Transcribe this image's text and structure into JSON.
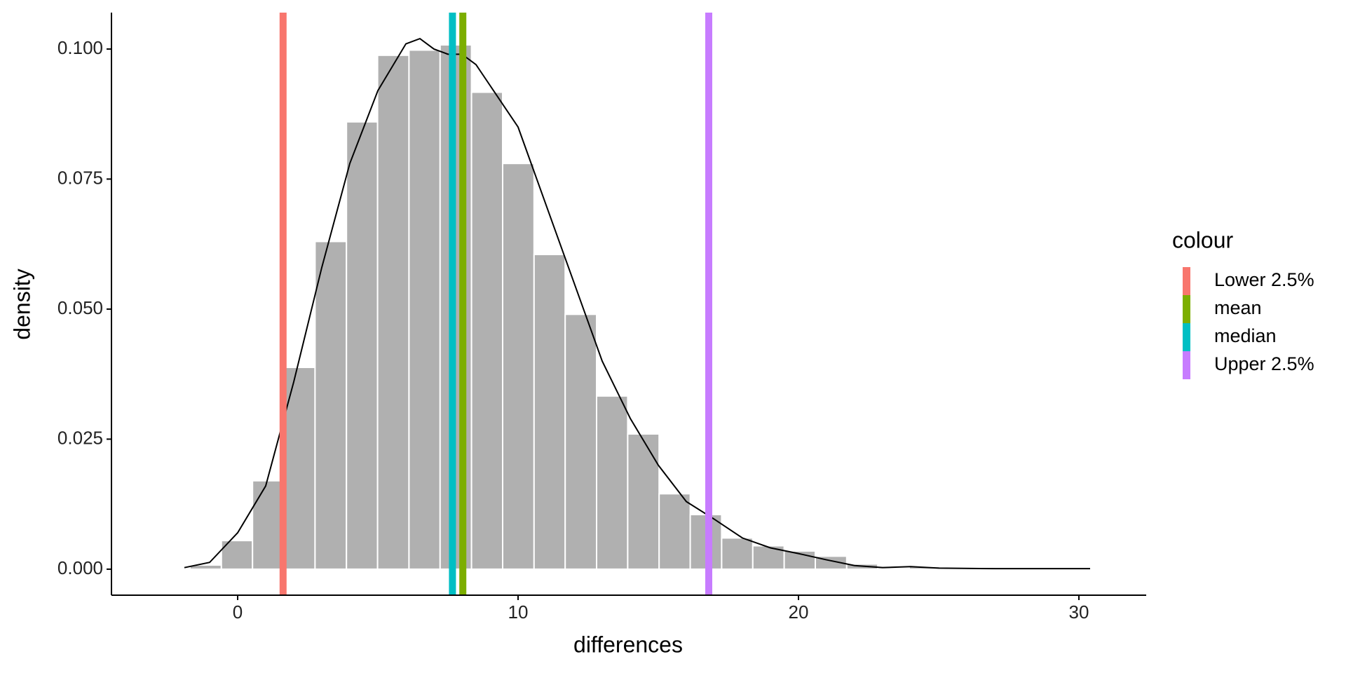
{
  "chart_data": {
    "type": "histogram",
    "x_label": "differences",
    "y_label": "density",
    "bins": [
      -1.7,
      -0.58,
      0.53,
      1.65,
      2.76,
      3.88,
      4.99,
      6.11,
      7.22,
      8.34,
      9.45,
      10.57,
      11.68,
      12.8,
      13.91,
      15.03,
      16.14,
      17.26,
      18.37,
      19.49,
      20.6,
      21.72,
      22.83,
      23.95,
      25.06,
      26.18,
      27.29,
      28.41,
      29.52,
      30.64
    ],
    "counts": [
      0.0008,
      0.0055,
      0.017,
      0.0388,
      0.063,
      0.086,
      0.0988,
      0.0998,
      0.1008,
      0.0917,
      0.078,
      0.0605,
      0.049,
      0.0333,
      0.026,
      0.0145,
      0.0105,
      0.006,
      0.0045,
      0.0035,
      0.0025,
      0.001,
      0.0003,
      0.0005,
      0.0002,
      0.0001,
      0.0001,
      0,
      0.0001
    ],
    "color": "#b0b0b0",
    "density": {
      "color": "#000000",
      "x": [
        -1.9,
        -1,
        0,
        1,
        2,
        3,
        4,
        5,
        6,
        6.5,
        7,
        7.5,
        8,
        8.5,
        9,
        10,
        11,
        12,
        13,
        14,
        15,
        16,
        17,
        18,
        19,
        20,
        21,
        22,
        23,
        24,
        25,
        27,
        30.4
      ],
      "y": [
        0.0003,
        0.0013,
        0.007,
        0.016,
        0.036,
        0.058,
        0.078,
        0.092,
        0.101,
        0.102,
        0.1,
        0.099,
        0.099,
        0.097,
        0.093,
        0.085,
        0.07,
        0.055,
        0.04,
        0.029,
        0.02,
        0.013,
        0.0096,
        0.006,
        0.0041,
        0.003,
        0.0018,
        0.0007,
        0.0003,
        0.0005,
        0.0002,
        0.0001,
        0.0001
      ]
    },
    "legend_title": "colour",
    "legend": "right",
    "vlines": [
      {
        "name": "Lower 2.5%",
        "color": "#F8766D",
        "value": 1.62
      },
      {
        "name": "mean",
        "color": "#7CAE00",
        "value": 8.03
      },
      {
        "name": "median",
        "color": "#00BFC4",
        "value": 7.66
      },
      {
        "name": "Upper 2.5%",
        "color": "#C77CFF",
        "value": 16.8
      }
    ],
    "xlim": [
      -4.5,
      32.4
    ],
    "ylim": [
      -0.005,
      0.107
    ],
    "xticks": [
      0,
      10,
      20,
      30
    ],
    "yticks": [
      {
        "value": 0,
        "label": "0.000"
      },
      {
        "value": 0.025,
        "label": "0.025"
      },
      {
        "value": 0.05,
        "label": "0.050"
      },
      {
        "value": 0.075,
        "label": "0.075"
      },
      {
        "value": 0.1,
        "label": "0.100"
      }
    ]
  }
}
